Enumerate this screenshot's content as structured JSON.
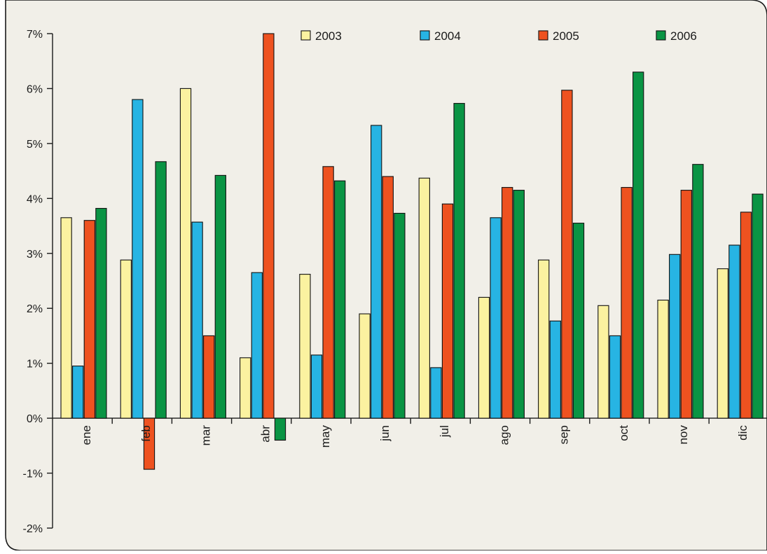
{
  "chart_data": {
    "type": "bar",
    "title": "",
    "xlabel": "",
    "ylabel": "",
    "ylim": [
      -2,
      7
    ],
    "y_ticks": [
      -2,
      -1,
      0,
      1,
      2,
      3,
      4,
      5,
      6,
      7
    ],
    "y_tick_labels": [
      "-2%",
      "-1%",
      "0%",
      "1%",
      "2%",
      "3%",
      "4%",
      "5%",
      "6%",
      "7%"
    ],
    "categories": [
      "ene",
      "feb",
      "mar",
      "abr",
      "may",
      "jun",
      "jul",
      "ago",
      "sep",
      "oct",
      "nov",
      "dic"
    ],
    "series": [
      {
        "name": "2003",
        "color": "#fbf2a0",
        "values": [
          3.65,
          2.88,
          6.0,
          1.1,
          2.62,
          1.9,
          4.37,
          2.2,
          2.88,
          2.05,
          2.15,
          2.72
        ]
      },
      {
        "name": "2004",
        "color": "#27b4e3",
        "values": [
          0.95,
          5.8,
          3.57,
          2.65,
          1.15,
          5.33,
          0.92,
          3.65,
          1.77,
          1.5,
          2.98,
          3.15
        ]
      },
      {
        "name": "2005",
        "color": "#ee5220",
        "values": [
          3.6,
          -0.93,
          1.5,
          7.0,
          4.58,
          4.4,
          3.9,
          4.2,
          5.97,
          4.2,
          4.15,
          3.75
        ]
      },
      {
        "name": "2006",
        "color": "#0a9444",
        "values": [
          3.82,
          4.67,
          4.42,
          -0.4,
          4.32,
          3.73,
          5.73,
          4.15,
          3.55,
          6.3,
          4.62,
          4.08
        ]
      }
    ],
    "legend_position": "top",
    "grid": false,
    "background_color": "#f1efe8",
    "frame_color": "#1a1a1a",
    "axis_color": "#1a1a1a",
    "bar_border_color": "#111111"
  }
}
